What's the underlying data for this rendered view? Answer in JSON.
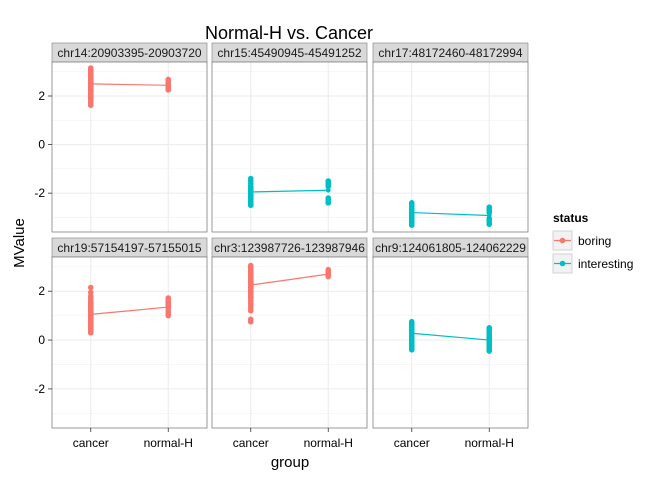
{
  "chart_data": {
    "type": "scatter",
    "title": "Normal-H vs. Cancer",
    "xlabel": "group",
    "ylabel": "MValue",
    "categories": [
      "cancer",
      "normal-H"
    ],
    "ylim": [
      -3.6,
      3.4
    ],
    "yticks": [
      2,
      0,
      -2
    ],
    "grid": true,
    "legend": {
      "title": "status",
      "position": "right",
      "entries": [
        {
          "name": "boring",
          "color": "#F8766D"
        },
        {
          "name": "interesting",
          "color": "#00BFC4"
        }
      ]
    },
    "panels": [
      {
        "label": "chr14:20903395-20903720",
        "status": "boring",
        "means": [
          2.5,
          2.44
        ],
        "cancer": [
          3.15,
          3.1,
          3.05,
          3.0,
          2.95,
          2.9,
          2.85,
          2.8,
          2.75,
          2.7,
          2.65,
          2.6,
          2.55,
          2.5,
          2.45,
          2.4,
          2.35,
          2.3,
          2.25,
          2.2,
          2.15,
          2.1,
          2.05,
          2.0,
          1.95,
          1.9,
          1.85,
          1.78,
          1.7,
          1.62
        ],
        "normal": [
          2.68,
          2.6,
          2.52,
          2.45,
          2.4,
          2.35,
          2.3,
          2.25
        ]
      },
      {
        "label": "chr15:45490945-45491252",
        "status": "interesting",
        "means": [
          -1.95,
          -1.88
        ],
        "cancer": [
          -1.4,
          -1.5,
          -1.6,
          -1.7,
          -1.75,
          -1.8,
          -1.85,
          -1.9,
          -1.95,
          -2.0,
          -2.05,
          -2.1,
          -2.15,
          -2.2,
          -2.25,
          -2.3,
          -2.35,
          -2.4,
          -2.45,
          -2.5
        ],
        "normal": [
          -1.5,
          -1.57,
          -1.65,
          -1.72,
          -2.2,
          -2.28,
          -2.35,
          -2.4
        ]
      },
      {
        "label": "chr17:48172460-48172994",
        "status": "interesting",
        "means": [
          -2.8,
          -2.92
        ],
        "cancer": [
          -2.4,
          -2.48,
          -2.55,
          -2.62,
          -2.7,
          -2.75,
          -2.8,
          -2.85,
          -2.9,
          -2.95,
          -3.0,
          -3.05,
          -3.1,
          -3.15,
          -3.2,
          -3.25,
          -3.32
        ],
        "normal": [
          -2.58,
          -2.65,
          -2.72,
          -2.8,
          -3.05,
          -3.12,
          -3.2,
          -3.28
        ]
      },
      {
        "label": "chr19:57154197-57155015",
        "status": "boring",
        "means": [
          1.05,
          1.35
        ],
        "cancer": [
          2.15,
          1.95,
          1.8,
          1.7,
          1.6,
          1.55,
          1.5,
          1.45,
          1.4,
          1.35,
          1.3,
          1.25,
          1.2,
          1.15,
          1.1,
          1.05,
          1.0,
          0.95,
          0.9,
          0.85,
          0.8,
          0.75,
          0.7,
          0.65,
          0.6,
          0.55,
          0.5,
          0.45,
          0.4,
          0.35,
          0.3
        ],
        "normal": [
          1.72,
          1.65,
          1.58,
          1.5,
          1.42,
          1.35,
          1.25,
          1.15,
          1.05,
          1.0
        ]
      },
      {
        "label": "chr3:123987726-123987946",
        "status": "boring",
        "means": [
          2.25,
          2.7
        ],
        "cancer": [
          3.05,
          3.0,
          2.95,
          2.9,
          2.85,
          2.8,
          2.75,
          2.7,
          2.65,
          2.6,
          2.55,
          2.5,
          2.45,
          2.4,
          2.35,
          2.3,
          2.25,
          2.2,
          2.15,
          2.1,
          2.05,
          2.0,
          1.95,
          1.9,
          1.85,
          1.8,
          1.75,
          1.7,
          1.6,
          1.5,
          1.4,
          1.3,
          1.2,
          0.85,
          0.75
        ],
        "normal": [
          2.88,
          2.82,
          2.76,
          2.7,
          2.65,
          2.6
        ]
      },
      {
        "label": "chr9:124061805-124062229",
        "status": "interesting",
        "means": [
          0.28,
          0.0
        ],
        "cancer": [
          0.75,
          0.7,
          0.65,
          0.6,
          0.55,
          0.5,
          0.45,
          0.4,
          0.35,
          0.3,
          0.25,
          0.2,
          0.15,
          0.1,
          0.05,
          0.0,
          -0.05,
          -0.1,
          -0.15,
          -0.2,
          -0.25,
          -0.3,
          -0.35,
          -0.4
        ],
        "normal": [
          0.5,
          0.42,
          0.35,
          0.28,
          0.2,
          0.12,
          0.05,
          -0.02,
          -0.1,
          -0.18,
          -0.25,
          -0.32,
          -0.4,
          -0.45
        ]
      }
    ]
  }
}
